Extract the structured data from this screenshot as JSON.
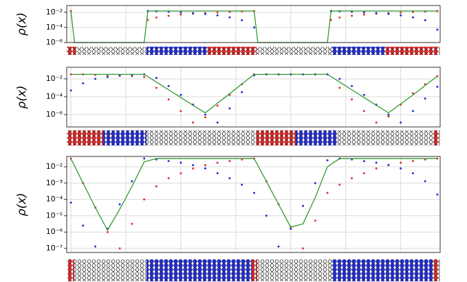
{
  "chart_data": [
    {
      "type": "line",
      "ylabel": "ρ(x)",
      "log_y": true,
      "grid": true,
      "xlim": [
        -0.34,
        30.23
      ],
      "xticks": [
        0,
        4.5,
        9,
        13.5,
        18,
        22.5,
        27
      ],
      "ylim": [
        1e-06,
        0.08
      ],
      "yticks": [
        {
          "value": 0.01,
          "label": "10⁻²"
        },
        {
          "value": 0.0001,
          "label": "10⁻⁴"
        },
        {
          "value": 1e-06,
          "label": "10⁻⁶"
        }
      ],
      "x": [
        0,
        0.3,
        3,
        6,
        6.3,
        7,
        8,
        9,
        10,
        11,
        12,
        13,
        14,
        15,
        15.3,
        18,
        21,
        21.3,
        22,
        23,
        24,
        25,
        26,
        27,
        28,
        29,
        30
      ],
      "series": [
        {
          "color": "#e8302a",
          "mode": "markers",
          "values": [
            0.015,
            null,
            null,
            null,
            0.001,
            0.002,
            0.0035,
            0.005,
            0.0065,
            0.008,
            0.0095,
            0.011,
            0.013,
            0.015,
            null,
            null,
            null,
            0.001,
            0.002,
            0.0035,
            0.005,
            0.0065,
            0.008,
            0.0095,
            0.011,
            0.013,
            0.015
          ]
        },
        {
          "color": "#2030e0",
          "mode": "markers",
          "values": [
            null,
            null,
            null,
            null,
            0.015,
            0.014,
            0.012,
            0.01,
            0.008,
            0.006,
            0.004,
            0.0022,
            0.0009,
            0.0001,
            null,
            null,
            null,
            0.015,
            0.014,
            0.012,
            0.01,
            0.008,
            0.006,
            0.004,
            0.0022,
            0.0009,
            5e-05
          ]
        },
        {
          "color": "#2e9a2e",
          "mode": "line",
          "values": [
            0.015,
            1e-06,
            1e-06,
            1e-06,
            0.015,
            0.015,
            0.015,
            0.015,
            0.015,
            0.015,
            0.015,
            0.015,
            0.015,
            0.015,
            1e-06,
            1e-06,
            1e-06,
            0.015,
            0.015,
            0.015,
            0.015,
            0.015,
            0.015,
            0.015,
            0.015,
            0.015,
            0.015
          ]
        }
      ]
    },
    {
      "type": "line",
      "ylabel": "ρ(x)",
      "log_y": true,
      "grid": true,
      "xlim": [
        -0.34,
        30.23
      ],
      "xticks": [
        0,
        4.5,
        9,
        13.5,
        18,
        22.5,
        27
      ],
      "ylim": [
        4.2e-08,
        0.2
      ],
      "yticks": [
        {
          "value": 0.01,
          "label": "10⁻²"
        },
        {
          "value": 0.0001,
          "label": "10⁻⁴"
        },
        {
          "value": 1e-06,
          "label": "10⁻⁶"
        }
      ],
      "x": [
        0,
        1,
        2,
        3,
        4,
        5,
        6,
        7,
        8,
        9,
        10,
        11,
        12,
        13,
        14,
        15,
        16,
        17,
        18,
        19,
        20,
        21,
        22,
        23,
        24,
        25,
        26,
        27,
        28,
        29,
        30
      ],
      "series": [
        {
          "color": "#e8302a",
          "mode": "markers",
          "values": [
            0.032,
            0.032,
            0.028,
            0.025,
            0.022,
            0.02,
            0.016,
            0.001,
            5e-05,
            2.5e-06,
            1.3e-07,
            5e-07,
            1e-05,
            0.00016,
            0.0025,
            0.032,
            0.032,
            0.032,
            0.032,
            0.032,
            0.032,
            0.032,
            0.001,
            5e-05,
            2.5e-06,
            1.3e-07,
            6.3e-07,
            1.3e-05,
            0.00025,
            0.0025,
            0.02
          ]
        },
        {
          "color": "#2030e0",
          "mode": "markers",
          "values": [
            0.0005,
            0.0032,
            0.01,
            0.016,
            0.025,
            0.028,
            0.032,
            0.0126,
            0.0016,
            0.00016,
            1.3e-05,
            1e-06,
            1.3e-07,
            5e-06,
            0.00032,
            0.025,
            0.032,
            0.032,
            0.032,
            0.032,
            0.032,
            0.032,
            0.01,
            0.0016,
            0.00016,
            1.3e-05,
            1e-06,
            1.3e-07,
            2.5e-06,
            6.3e-05,
            0.0013
          ]
        },
        {
          "color": "#2e9a2e",
          "mode": "line",
          "values": [
            0.032,
            0.032,
            0.032,
            0.032,
            0.032,
            0.032,
            0.032,
            0.0044,
            0.0006,
            8.3e-05,
            1.1e-05,
            1.6e-06,
            1.9e-05,
            0.00022,
            0.0027,
            0.032,
            0.032,
            0.032,
            0.032,
            0.032,
            0.032,
            0.032,
            0.0044,
            0.0006,
            8.3e-05,
            1.1e-05,
            1.6e-06,
            1.6e-05,
            0.00016,
            0.0018,
            0.02
          ]
        }
      ]
    },
    {
      "type": "line",
      "ylabel": "ρ(x)",
      "log_y": true,
      "grid": true,
      "xlim": [
        -0.34,
        30.23
      ],
      "xticks": [
        0,
        4.5,
        9,
        13.5,
        18,
        22.5,
        27
      ],
      "ylim": [
        5.6e-08,
        0.043
      ],
      "yticks": [
        {
          "value": 0.01,
          "label": "10⁻²"
        },
        {
          "value": 0.001,
          "label": "10⁻³"
        },
        {
          "value": 0.0001,
          "label": "10⁻⁴"
        },
        {
          "value": 1e-05,
          "label": "10⁻⁵"
        },
        {
          "value": 1e-06,
          "label": "10⁻⁶"
        },
        {
          "value": 1e-07,
          "label": "10⁻⁷"
        }
      ],
      "x": [
        0,
        1,
        2,
        3,
        4,
        5,
        6,
        7,
        8,
        9,
        10,
        11,
        12,
        13,
        14,
        15,
        16,
        17,
        18,
        19,
        20,
        21,
        22,
        23,
        24,
        25,
        26,
        27,
        28,
        29,
        30
      ],
      "series": [
        {
          "color": "#e8302a",
          "mode": "markers",
          "values": [
            0.032,
            0.001,
            3.2e-05,
            1e-06,
            1e-07,
            3.2e-06,
            0.0001,
            0.00063,
            0.002,
            0.004,
            0.0079,
            0.0126,
            0.0178,
            0.0224,
            0.028,
            0.032,
            0.0013,
            5e-05,
            2e-06,
            1e-07,
            5e-06,
            0.00025,
            0.00079,
            0.002,
            0.004,
            0.0079,
            0.0126,
            0.0178,
            0.0224,
            0.028,
            0.032
          ]
        },
        {
          "color": "#2030e0",
          "mode": "markers",
          "values": [
            6.3e-05,
            2.5e-06,
            1.3e-07,
            1.6e-06,
            5e-05,
            0.0013,
            0.032,
            0.028,
            0.0224,
            0.0178,
            0.0126,
            0.0079,
            0.004,
            0.002,
            0.00079,
            0.00025,
            1e-05,
            1.3e-07,
            1.6e-06,
            4e-05,
            0.001,
            0.025,
            0.032,
            0.028,
            0.0224,
            0.0178,
            0.0126,
            0.0079,
            0.004,
            0.0013,
            0.0002
          ]
        },
        {
          "color": "#2e9a2e",
          "mode": "line",
          "values": [
            0.032,
            0.001,
            3.2e-05,
            1.3e-06,
            2.5e-05,
            0.00063,
            0.02,
            0.032,
            0.032,
            0.032,
            0.032,
            0.032,
            0.032,
            0.032,
            0.032,
            0.032,
            0.0013,
            5e-05,
            2e-06,
            3.2e-06,
            0.00013,
            0.01,
            0.032,
            0.032,
            0.032,
            0.032,
            0.032,
            0.032,
            0.032,
            0.032,
            0.032
          ]
        }
      ]
    }
  ]
}
